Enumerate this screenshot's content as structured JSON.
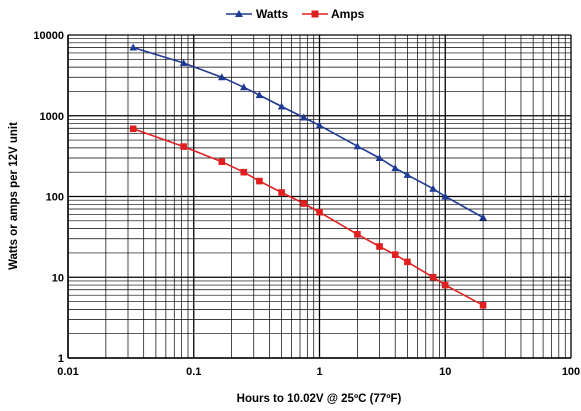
{
  "chart_data": {
    "type": "line",
    "x_scale": "log",
    "y_scale": "log",
    "xlabel": "Hours to 10.02V @ 25ºC (77ºF)",
    "ylabel": "Watts or amps per 12V unit",
    "xlim": [
      0.01,
      100
    ],
    "ylim": [
      1,
      10000
    ],
    "x_tick_labels": [
      "0.01",
      "0.1",
      "1",
      "10",
      "100"
    ],
    "y_tick_labels": [
      "1",
      "10",
      "100",
      "1000",
      "10000"
    ],
    "grid": true,
    "legend_position": "top-center",
    "series": [
      {
        "name": "Watts",
        "color": "#1f3a93",
        "marker": "triangle",
        "x": [
          0.033,
          0.083,
          0.167,
          0.25,
          0.333,
          0.5,
          0.75,
          1,
          2,
          3,
          4,
          5,
          8,
          10,
          20
        ],
        "values": [
          7000,
          4500,
          3000,
          2250,
          1800,
          1300,
          950,
          760,
          420,
          300,
          225,
          185,
          125,
          100,
          55
        ]
      },
      {
        "name": "Amps",
        "color": "#e02020",
        "marker": "square",
        "x": [
          0.033,
          0.083,
          0.167,
          0.25,
          0.333,
          0.5,
          0.75,
          1,
          2,
          3,
          4,
          5,
          8,
          10,
          20
        ],
        "values": [
          690,
          415,
          270,
          200,
          155,
          112,
          82,
          64,
          34,
          24,
          19,
          15.5,
          10,
          8,
          4.5
        ]
      }
    ]
  }
}
